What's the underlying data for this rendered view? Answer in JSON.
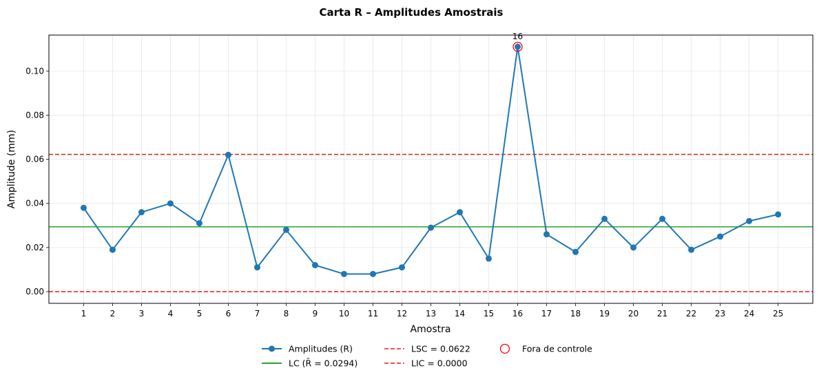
{
  "chart_data": {
    "type": "line",
    "title": "Carta R – Amplitudes Amostrais",
    "xlabel": "Amostra",
    "ylabel": "Amplitude (mm)",
    "x": [
      1,
      2,
      3,
      4,
      5,
      6,
      7,
      8,
      9,
      10,
      11,
      12,
      13,
      14,
      15,
      16,
      17,
      18,
      19,
      20,
      21,
      22,
      23,
      24,
      25
    ],
    "x_tick_labels": [
      "1",
      "2",
      "3",
      "4",
      "5",
      "6",
      "7",
      "8",
      "9",
      "10",
      "11",
      "12",
      "13",
      "14",
      "15",
      "16",
      "17",
      "18",
      "19",
      "20",
      "21",
      "22",
      "23",
      "24",
      "25"
    ],
    "xlim": [
      -0.2,
      26.2
    ],
    "ylim": [
      -0.0053,
      0.1163
    ],
    "y_ticks": [
      0.0,
      0.02,
      0.04,
      0.06,
      0.08,
      0.1
    ],
    "y_tick_labels": [
      "0.00",
      "0.02",
      "0.04",
      "0.06",
      "0.08",
      "0.10"
    ],
    "grid": true,
    "legend_position": "bottom-center",
    "series": [
      {
        "name": "Amplitudes (R)",
        "color": "#1f77b4",
        "values": [
          0.038,
          0.019,
          0.036,
          0.04,
          0.031,
          0.062,
          0.011,
          0.028,
          0.012,
          0.008,
          0.008,
          0.011,
          0.029,
          0.036,
          0.015,
          0.111,
          0.026,
          0.018,
          0.033,
          0.02,
          0.033,
          0.019,
          0.025,
          0.032,
          0.035
        ]
      }
    ],
    "reference_lines": [
      {
        "name": "LC (R̄ = 0.0294)",
        "value": 0.0294,
        "color": "#2ca02c",
        "style": "solid"
      },
      {
        "name": "LSC = 0.0622",
        "value": 0.0622,
        "color": "#e41a1c",
        "style": "dashed"
      },
      {
        "name": "LIC = 0.0000",
        "value": 0.0,
        "color": "#e41a1c",
        "style": "dashed"
      }
    ],
    "out_of_control": {
      "name": "Fora de controle",
      "color": "#ff0000",
      "points": [
        {
          "x": 16,
          "y": 0.111,
          "label": "16"
        }
      ]
    }
  }
}
